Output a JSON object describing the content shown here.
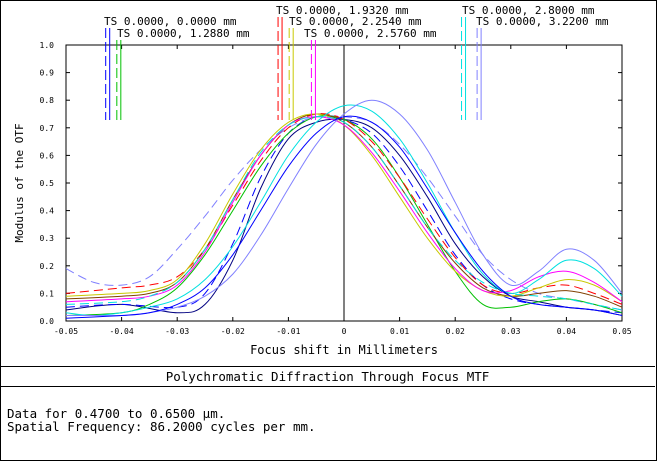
{
  "chart_data": {
    "type": "line",
    "xlabel": "Focus shift in Millimeters",
    "ylabel": "Modulus of the OTF",
    "xlim": [
      -0.05,
      0.05
    ],
    "ylim": [
      0.0,
      1.0
    ],
    "xticks": [
      "-0.05",
      "-0.04",
      "-0.03",
      "-0.02",
      "-0.01",
      "0",
      "0.01",
      "0.02",
      "0.03",
      "0.04",
      "0.05"
    ],
    "yticks": [
      "0.0",
      "0.1",
      "0.2",
      "0.3",
      "0.4",
      "0.5",
      "0.6",
      "0.7",
      "0.8",
      "0.9",
      "1.0"
    ],
    "grid": false,
    "legend": [
      {
        "label": "TS 0.0000, 0.0000 mm",
        "color": "#0000ff",
        "marker_x": -0.0425
      },
      {
        "label": "TS 0.0000, 1.2880 mm",
        "color": "#00c000",
        "marker_x": -0.0405
      },
      {
        "label": "TS 0.0000, 1.9320 mm",
        "color": "#ff0000",
        "marker_x": -0.0115
      },
      {
        "label": "TS 0.0000, 2.2540 mm",
        "color": "#c8c800",
        "marker_x": -0.0095
      },
      {
        "label": "TS 0.0000, 2.5760 mm",
        "color": "#ff00ff",
        "marker_x": -0.0055
      },
      {
        "label": "TS 0.0000, 2.8000 mm",
        "color": "#00e0e0",
        "marker_x": 0.0215
      },
      {
        "label": "TS 0.0000, 3.2200 mm",
        "color": "#8080ff",
        "marker_x": 0.0243
      }
    ],
    "series": [
      {
        "color": "#000080",
        "dash": false,
        "x": [
          -0.05,
          -0.04,
          -0.03,
          -0.025,
          -0.02,
          -0.015,
          -0.01,
          -0.005,
          0,
          0.005,
          0.01,
          0.015,
          0.02,
          0.025,
          0.03,
          0.035,
          0.04,
          0.045,
          0.05
        ],
        "y": [
          0.04,
          0.06,
          0.03,
          0.06,
          0.22,
          0.48,
          0.66,
          0.72,
          0.73,
          0.7,
          0.6,
          0.45,
          0.28,
          0.16,
          0.09,
          0.07,
          0.05,
          0.04,
          0.02
        ]
      },
      {
        "color": "#0000ff",
        "dash": true,
        "x": [
          -0.05,
          -0.04,
          -0.03,
          -0.025,
          -0.02,
          -0.015,
          -0.01,
          -0.005,
          0,
          0.005,
          0.01,
          0.015,
          0.02,
          0.025,
          0.03,
          0.035,
          0.04,
          0.045,
          0.05
        ],
        "y": [
          0.05,
          0.06,
          0.05,
          0.1,
          0.28,
          0.52,
          0.68,
          0.74,
          0.73,
          0.68,
          0.56,
          0.4,
          0.24,
          0.13,
          0.08,
          0.06,
          0.05,
          0.04,
          0.03
        ]
      },
      {
        "color": "#8080ff",
        "dash": true,
        "x": [
          -0.05,
          -0.045,
          -0.04,
          -0.035,
          -0.03,
          -0.025,
          -0.02,
          -0.015,
          -0.01,
          -0.005,
          0,
          0.005,
          0.01,
          0.015,
          0.02,
          0.025,
          0.03,
          0.035,
          0.04,
          0.045,
          0.05
        ],
        "y": [
          0.19,
          0.14,
          0.13,
          0.16,
          0.26,
          0.38,
          0.51,
          0.62,
          0.7,
          0.74,
          0.74,
          0.72,
          0.64,
          0.52,
          0.38,
          0.24,
          0.15,
          0.1,
          0.08,
          0.06,
          0.04
        ]
      },
      {
        "color": "#00c000",
        "dash": false,
        "x": [
          -0.05,
          -0.04,
          -0.035,
          -0.03,
          -0.025,
          -0.02,
          -0.015,
          -0.01,
          -0.005,
          0,
          0.005,
          0.01,
          0.015,
          0.02,
          0.025,
          0.03,
          0.035,
          0.04,
          0.045,
          0.05
        ],
        "y": [
          0.02,
          0.03,
          0.06,
          0.12,
          0.24,
          0.4,
          0.56,
          0.68,
          0.74,
          0.73,
          0.66,
          0.52,
          0.35,
          0.18,
          0.06,
          0.05,
          0.07,
          0.08,
          0.06,
          0.03
        ]
      },
      {
        "color": "#ff0000",
        "dash": true,
        "x": [
          -0.05,
          -0.04,
          -0.035,
          -0.03,
          -0.025,
          -0.02,
          -0.015,
          -0.01,
          -0.005,
          0,
          0.005,
          0.01,
          0.015,
          0.02,
          0.025,
          0.03,
          0.035,
          0.04,
          0.045,
          0.05
        ],
        "y": [
          0.1,
          0.12,
          0.13,
          0.16,
          0.26,
          0.42,
          0.58,
          0.7,
          0.75,
          0.73,
          0.65,
          0.52,
          0.37,
          0.23,
          0.13,
          0.1,
          0.12,
          0.13,
          0.1,
          0.06
        ]
      },
      {
        "color": "#804000",
        "dash": false,
        "x": [
          -0.05,
          -0.04,
          -0.035,
          -0.03,
          -0.025,
          -0.02,
          -0.015,
          -0.01,
          -0.005,
          0,
          0.005,
          0.01,
          0.015,
          0.02,
          0.025,
          0.03,
          0.035,
          0.04,
          0.045,
          0.05
        ],
        "y": [
          0.08,
          0.09,
          0.1,
          0.14,
          0.26,
          0.44,
          0.6,
          0.71,
          0.75,
          0.72,
          0.63,
          0.49,
          0.34,
          0.21,
          0.12,
          0.09,
          0.1,
          0.11,
          0.09,
          0.05
        ]
      },
      {
        "color": "#c8c800",
        "dash": false,
        "x": [
          -0.05,
          -0.04,
          -0.035,
          -0.03,
          -0.025,
          -0.02,
          -0.015,
          -0.01,
          -0.005,
          0,
          0.005,
          0.01,
          0.015,
          0.02,
          0.025,
          0.03,
          0.035,
          0.04,
          0.045,
          0.05
        ],
        "y": [
          0.09,
          0.1,
          0.11,
          0.15,
          0.28,
          0.46,
          0.62,
          0.72,
          0.75,
          0.71,
          0.6,
          0.45,
          0.3,
          0.18,
          0.11,
          0.09,
          0.12,
          0.15,
          0.13,
          0.07
        ]
      },
      {
        "color": "#ff00ff",
        "dash": false,
        "x": [
          -0.05,
          -0.04,
          -0.035,
          -0.03,
          -0.025,
          -0.02,
          -0.015,
          -0.01,
          -0.005,
          0,
          0.005,
          0.01,
          0.015,
          0.02,
          0.025,
          0.03,
          0.035,
          0.04,
          0.045,
          0.05
        ],
        "y": [
          0.07,
          0.08,
          0.09,
          0.13,
          0.25,
          0.43,
          0.6,
          0.71,
          0.74,
          0.71,
          0.61,
          0.47,
          0.32,
          0.19,
          0.11,
          0.11,
          0.16,
          0.18,
          0.14,
          0.07
        ]
      },
      {
        "color": "#00e0e0",
        "dash": false,
        "x": [
          -0.05,
          -0.045,
          -0.04,
          -0.035,
          -0.03,
          -0.025,
          -0.02,
          -0.015,
          -0.01,
          -0.005,
          0,
          0.005,
          0.01,
          0.015,
          0.02,
          0.025,
          0.03,
          0.035,
          0.04,
          0.045,
          0.05
        ],
        "y": [
          0.03,
          0.02,
          0.03,
          0.05,
          0.08,
          0.15,
          0.27,
          0.43,
          0.6,
          0.72,
          0.78,
          0.76,
          0.66,
          0.5,
          0.32,
          0.17,
          0.1,
          0.15,
          0.22,
          0.19,
          0.09
        ]
      },
      {
        "color": "#00e0e0",
        "dash": true,
        "x": [
          -0.05,
          -0.04,
          -0.035,
          -0.03,
          -0.025,
          -0.02,
          -0.015,
          -0.01,
          -0.005,
          0,
          0.005,
          0.01,
          0.015,
          0.02,
          0.025,
          0.03,
          0.035,
          0.04,
          0.045,
          0.05
        ],
        "y": [
          0.06,
          0.07,
          0.09,
          0.14,
          0.26,
          0.44,
          0.61,
          0.71,
          0.74,
          0.72,
          0.63,
          0.49,
          0.34,
          0.22,
          0.14,
          0.1,
          0.09,
          0.08,
          0.06,
          0.04
        ]
      },
      {
        "color": "#8080ff",
        "dash": false,
        "x": [
          -0.05,
          -0.045,
          -0.04,
          -0.035,
          -0.03,
          -0.025,
          -0.02,
          -0.015,
          -0.01,
          -0.005,
          0,
          0.005,
          0.01,
          0.015,
          0.02,
          0.025,
          0.03,
          0.035,
          0.04,
          0.045,
          0.05
        ],
        "y": [
          0.02,
          0.02,
          0.02,
          0.03,
          0.05,
          0.09,
          0.17,
          0.31,
          0.48,
          0.64,
          0.75,
          0.8,
          0.75,
          0.62,
          0.43,
          0.24,
          0.13,
          0.18,
          0.26,
          0.22,
          0.1
        ]
      },
      {
        "color": "#0000ff",
        "dash": false,
        "x": [
          -0.05,
          -0.04,
          -0.035,
          -0.03,
          -0.025,
          -0.02,
          -0.015,
          -0.01,
          -0.005,
          0,
          0.005,
          0.01,
          0.015,
          0.02,
          0.025,
          0.03,
          0.035,
          0.04,
          0.045,
          0.05
        ],
        "y": [
          0.01,
          0.02,
          0.03,
          0.06,
          0.12,
          0.24,
          0.4,
          0.56,
          0.68,
          0.74,
          0.72,
          0.63,
          0.48,
          0.32,
          0.18,
          0.09,
          0.06,
          0.05,
          0.04,
          0.02
        ]
      }
    ]
  },
  "caption": {
    "title": "Polychromatic Diffraction Through Focus MTF",
    "lines": [
      "Data for 0.4700 to 0.6500 µm.",
      "Spatial Frequency: 86.2000 cycles per mm."
    ]
  }
}
